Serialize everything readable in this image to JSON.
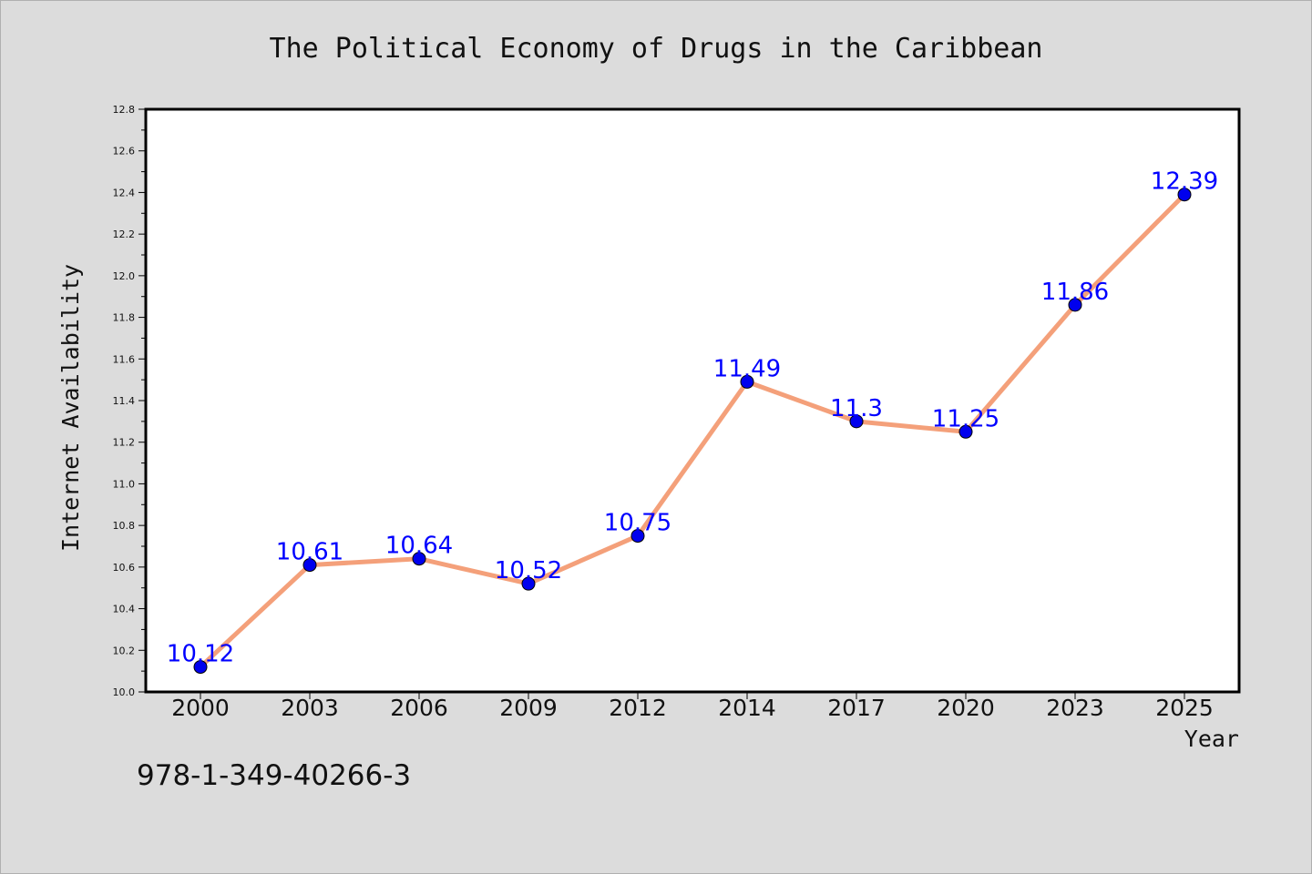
{
  "chart_data": {
    "type": "line",
    "title": "The Political Economy of Drugs in the Caribbean",
    "xlabel": "Year",
    "ylabel": "Internet Availability",
    "categories": [
      "2000",
      "2003",
      "2006",
      "2009",
      "2012",
      "2014",
      "2017",
      "2020",
      "2023",
      "2025"
    ],
    "series": [
      {
        "values": [
          10.12,
          10.61,
          10.64,
          10.52,
          10.75,
          11.49,
          11.3,
          11.25,
          11.86,
          12.39
        ],
        "labels": [
          "10.12",
          "10.61",
          "10.64",
          "10.52",
          "10.75",
          "11.49",
          "11.3",
          "11.25",
          "11.86",
          "12.39"
        ]
      }
    ],
    "ylim": [
      10.0,
      12.8
    ],
    "yticks": [
      "10.0",
      "10.2",
      "10.4",
      "10.6",
      "10.8",
      "11.0",
      "11.2",
      "11.4",
      "11.6",
      "11.8",
      "12.0",
      "12.2",
      "12.4",
      "12.6",
      "12.8"
    ],
    "grid": false,
    "legend": "none",
    "colors": {
      "line": "#f4a07a",
      "marker": "#0000ee",
      "label": "#0000ff",
      "background": "#dcdcdc",
      "plot_bg": "#ffffff"
    }
  },
  "footer": {
    "isbn": "978-1-349-40266-3"
  }
}
